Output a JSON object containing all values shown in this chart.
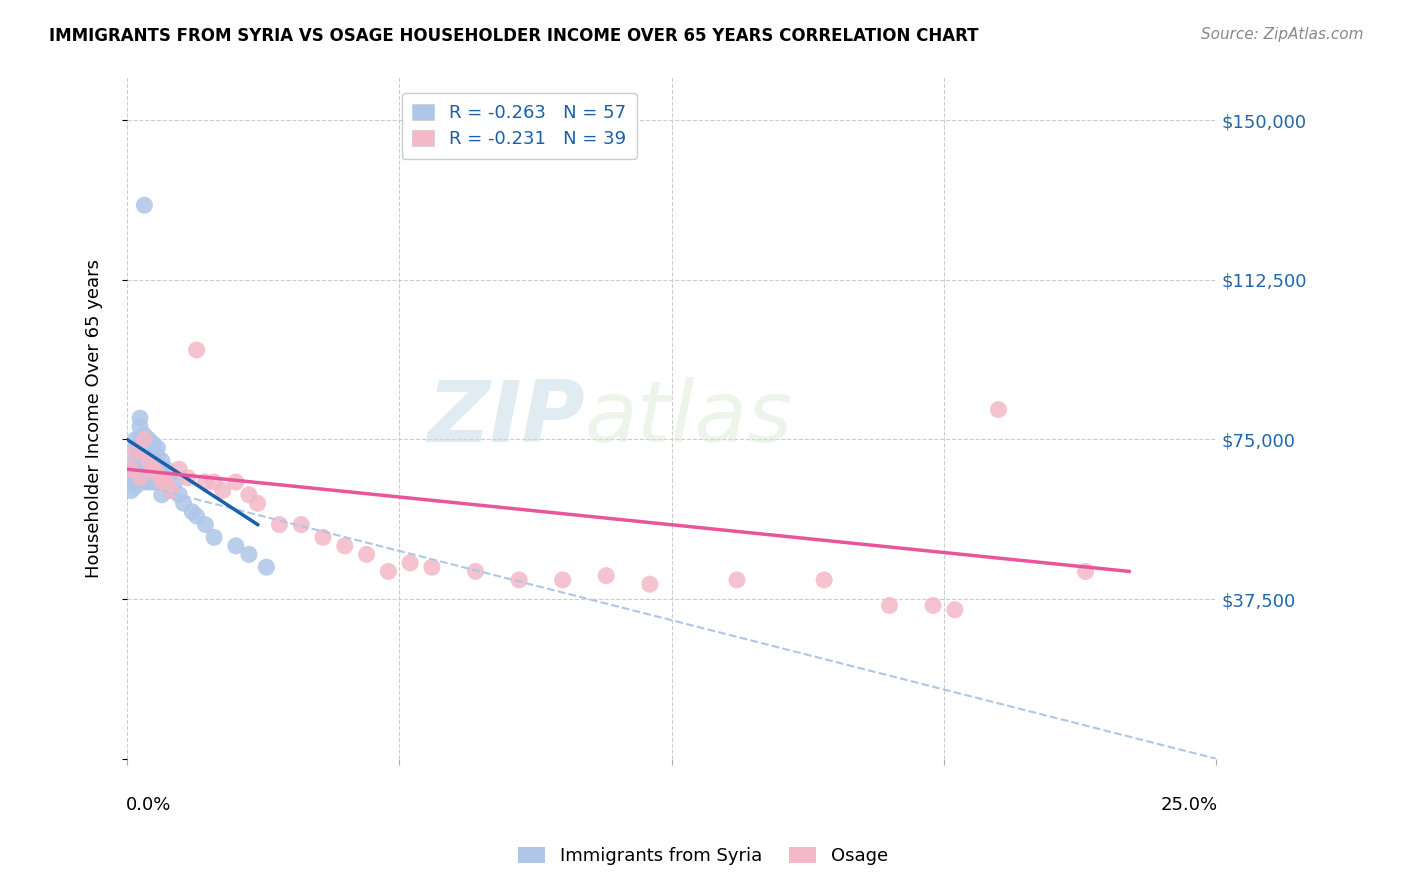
{
  "title": "IMMIGRANTS FROM SYRIA VS OSAGE HOUSEHOLDER INCOME OVER 65 YEARS CORRELATION CHART",
  "source": "Source: ZipAtlas.com",
  "ylabel": "Householder Income Over 65 years",
  "xlim": [
    0,
    0.25
  ],
  "ylim": [
    0,
    160000
  ],
  "yticks": [
    0,
    37500,
    75000,
    112500,
    150000
  ],
  "ytick_labels": [
    "",
    "$37,500",
    "$75,000",
    "$112,500",
    "$150,000"
  ],
  "legend_entries": [
    {
      "label": "R = -0.263   N = 57",
      "color": "#aec6e8"
    },
    {
      "label": "R = -0.231   N = 39",
      "color": "#f4b8c8"
    }
  ],
  "legend_bottom": [
    {
      "label": "Immigrants from Syria",
      "color": "#aec6e8"
    },
    {
      "label": "Osage",
      "color": "#f4b8c8"
    }
  ],
  "syria_color": "#aec6e8",
  "osage_color": "#f4b8c8",
  "syria_line_color": "#1a5fa8",
  "osage_line_color": "#e8559a",
  "syria_dashed_color": "#aec6e8",
  "watermark_zip": "ZIP",
  "watermark_atlas": "atlas",
  "syria_x": [
    0.001,
    0.001,
    0.001,
    0.001,
    0.001,
    0.002,
    0.002,
    0.002,
    0.002,
    0.002,
    0.002,
    0.003,
    0.003,
    0.003,
    0.003,
    0.003,
    0.003,
    0.004,
    0.004,
    0.004,
    0.004,
    0.004,
    0.004,
    0.005,
    0.005,
    0.005,
    0.005,
    0.005,
    0.005,
    0.006,
    0.006,
    0.006,
    0.006,
    0.006,
    0.007,
    0.007,
    0.007,
    0.007,
    0.008,
    0.008,
    0.008,
    0.008,
    0.009,
    0.009,
    0.01,
    0.01,
    0.011,
    0.012,
    0.013,
    0.015,
    0.016,
    0.018,
    0.02,
    0.025,
    0.028,
    0.032,
    0.004
  ],
  "syria_y": [
    68000,
    67000,
    66000,
    65000,
    63000,
    75000,
    73000,
    70000,
    68000,
    66000,
    64000,
    80000,
    78000,
    75000,
    72000,
    70000,
    68000,
    76000,
    74000,
    72000,
    70000,
    68000,
    65000,
    75000,
    73000,
    71000,
    69000,
    67000,
    65000,
    74000,
    72000,
    70000,
    68000,
    65000,
    73000,
    71000,
    68000,
    65000,
    70000,
    68000,
    66000,
    62000,
    68000,
    65000,
    67000,
    63000,
    65000,
    62000,
    60000,
    58000,
    57000,
    55000,
    52000,
    50000,
    48000,
    45000,
    130000
  ],
  "osage_x": [
    0.001,
    0.002,
    0.003,
    0.004,
    0.005,
    0.006,
    0.007,
    0.008,
    0.009,
    0.01,
    0.012,
    0.014,
    0.016,
    0.018,
    0.02,
    0.022,
    0.025,
    0.028,
    0.03,
    0.035,
    0.04,
    0.045,
    0.05,
    0.055,
    0.06,
    0.065,
    0.07,
    0.08,
    0.09,
    0.1,
    0.11,
    0.12,
    0.14,
    0.16,
    0.175,
    0.185,
    0.19,
    0.2,
    0.22
  ],
  "osage_y": [
    68000,
    72000,
    66000,
    75000,
    70000,
    68000,
    67000,
    65000,
    65000,
    63000,
    68000,
    66000,
    96000,
    65000,
    65000,
    63000,
    65000,
    62000,
    60000,
    55000,
    55000,
    52000,
    50000,
    48000,
    44000,
    46000,
    45000,
    44000,
    42000,
    42000,
    43000,
    41000,
    42000,
    42000,
    36000,
    36000,
    35000,
    82000,
    44000
  ],
  "syria_line_x0": 0.0,
  "syria_line_y0": 75000,
  "syria_line_x1": 0.03,
  "syria_line_y1": 55000,
  "osage_line_x0": 0.0,
  "osage_line_y0": 68000,
  "osage_line_x1": 0.23,
  "osage_line_y1": 44000,
  "dash_line_x0": 0.008,
  "dash_line_y0": 63000,
  "dash_line_x1": 0.25,
  "dash_line_y1": 0
}
